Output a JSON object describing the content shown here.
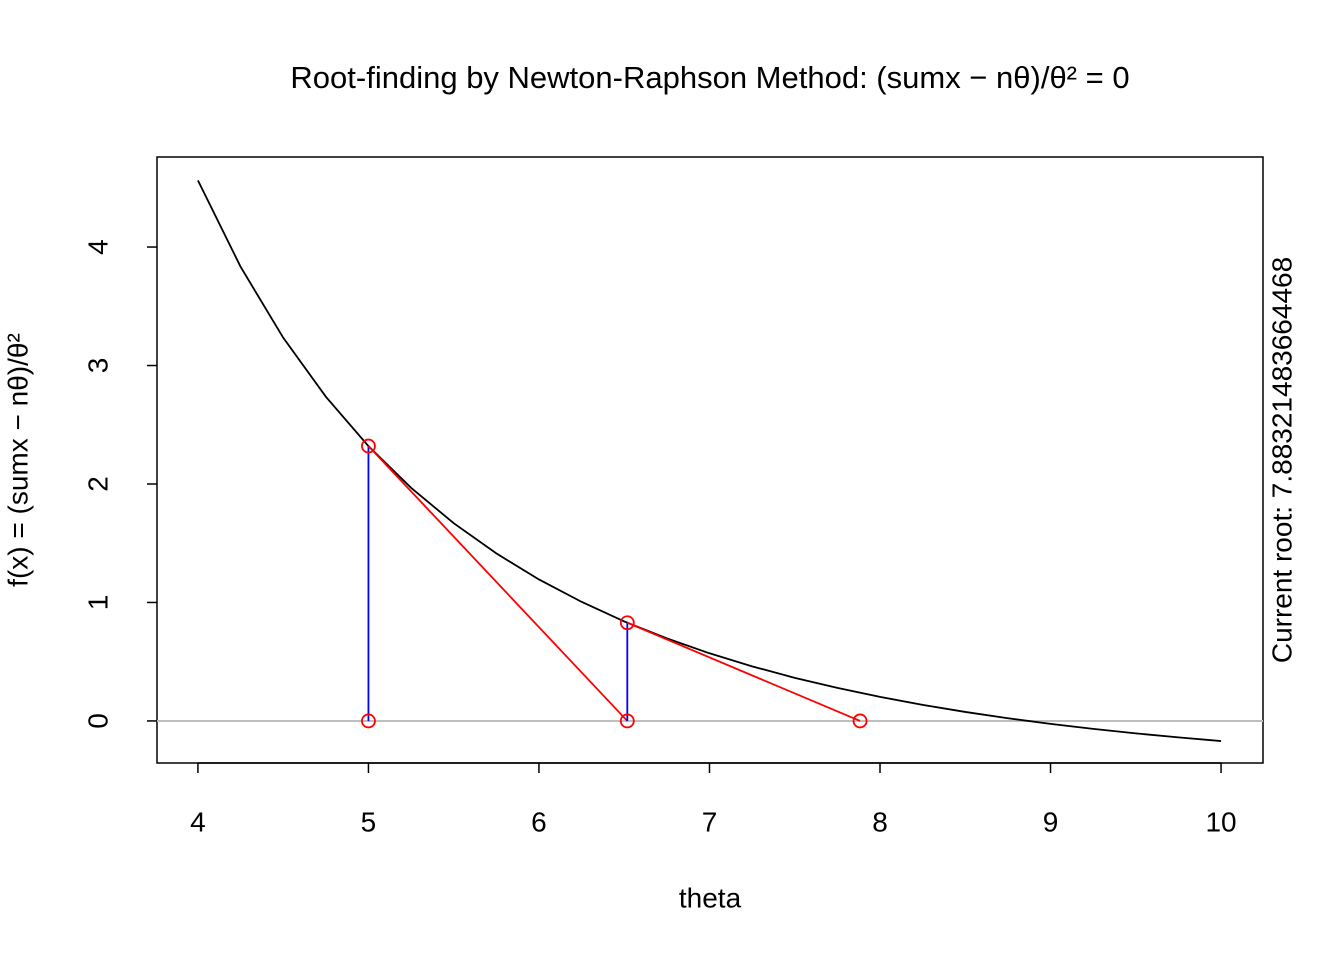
{
  "chart_data": {
    "type": "newton",
    "title": "Root-finding by Newton-Raphson Method: (sumx − nθ)/θ² = 0",
    "xlabel": "theta",
    "ylabel": "f(x) = (sumx − nθ)/θ²",
    "annotation": "Current root: 7.88321483664468",
    "xlim": [
      3.76,
      10.246
    ],
    "ylim": [
      -0.355,
      4.76
    ],
    "xticks": [
      4,
      5,
      6,
      7,
      8,
      9,
      10
    ],
    "yticks": [
      0,
      1,
      2,
      3,
      4
    ],
    "zero_line": 0,
    "zero_color": "#bebebe",
    "curve": {
      "color": "#000000",
      "x": [
        4,
        4.25,
        4.5,
        4.75,
        5,
        5.25,
        5.5,
        5.75,
        6,
        6.25,
        6.5,
        6.75,
        7,
        7.25,
        7.5,
        7.75,
        8,
        8.25,
        8.5,
        8.75,
        9,
        9.25,
        9.5,
        9.75,
        10
      ],
      "values": [
        4.5625,
        3.834,
        3.235,
        2.737,
        2.32,
        1.968,
        1.669,
        1.414,
        1.194,
        1.005,
        0.84,
        0.697,
        0.571,
        0.461,
        0.364,
        0.279,
        0.203,
        0.136,
        0.076,
        0.023,
        -0.025,
        -0.067,
        -0.105,
        -0.139,
        -0.17
      ]
    },
    "iterates": {
      "point_color": "#ff0000",
      "vertical_color": "#0000ff",
      "tangent_color": "#ff0000",
      "x": [
        5,
        6.518,
        7.883
      ],
      "values": [
        2.32,
        0.829,
        null
      ]
    }
  }
}
